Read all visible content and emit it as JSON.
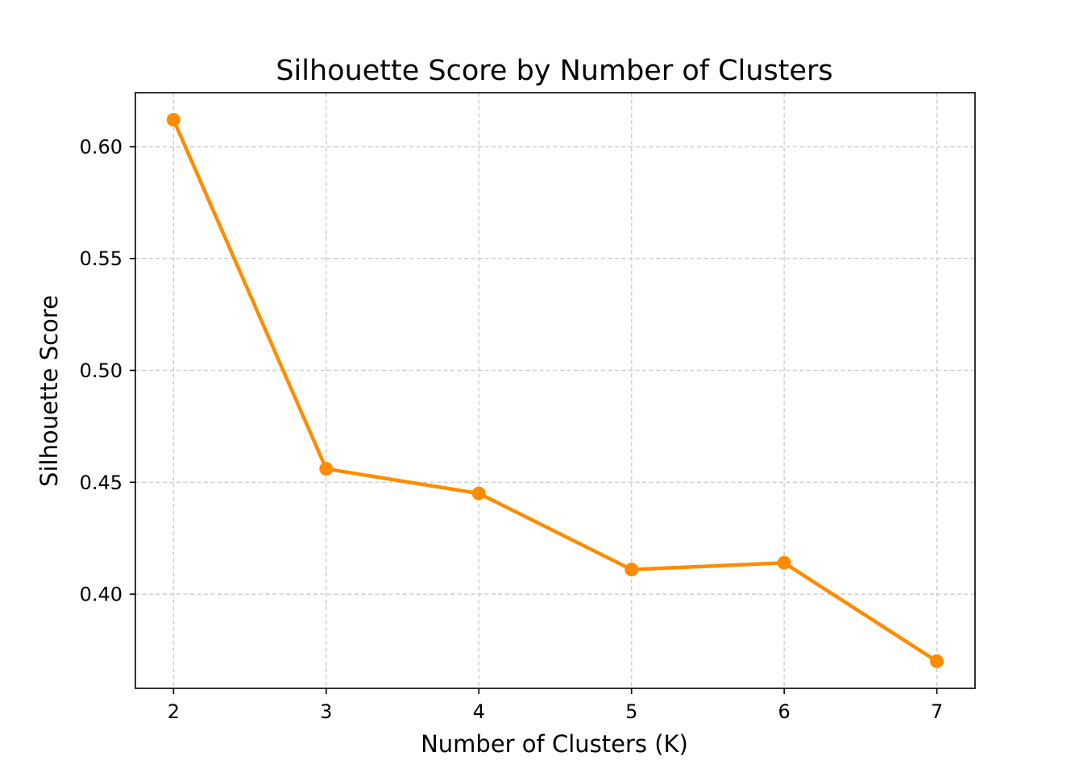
{
  "chart_data": {
    "type": "line",
    "title": "Silhouette Score by Number of Clusters",
    "xlabel": "Number of Clusters (K)",
    "ylabel": "Silhouette Score",
    "x": [
      2,
      3,
      4,
      5,
      6,
      7
    ],
    "series": [
      {
        "values": [
          0.612,
          0.456,
          0.445,
          0.411,
          0.414,
          0.37
        ],
        "color": "#ff8c00",
        "marker": "circle"
      }
    ],
    "xticks": [
      2,
      3,
      4,
      5,
      6,
      7
    ],
    "xtick_labels": [
      "2",
      "3",
      "4",
      "5",
      "6",
      "7"
    ],
    "yticks": [
      0.4,
      0.45,
      0.5,
      0.55,
      0.6
    ],
    "ytick_labels": [
      "0.40",
      "0.45",
      "0.50",
      "0.55",
      "0.60"
    ],
    "xlim": [
      1.75,
      7.25
    ],
    "ylim": [
      0.3579,
      0.6241
    ],
    "grid": true,
    "grid_style": "dashed",
    "legend": false
  }
}
